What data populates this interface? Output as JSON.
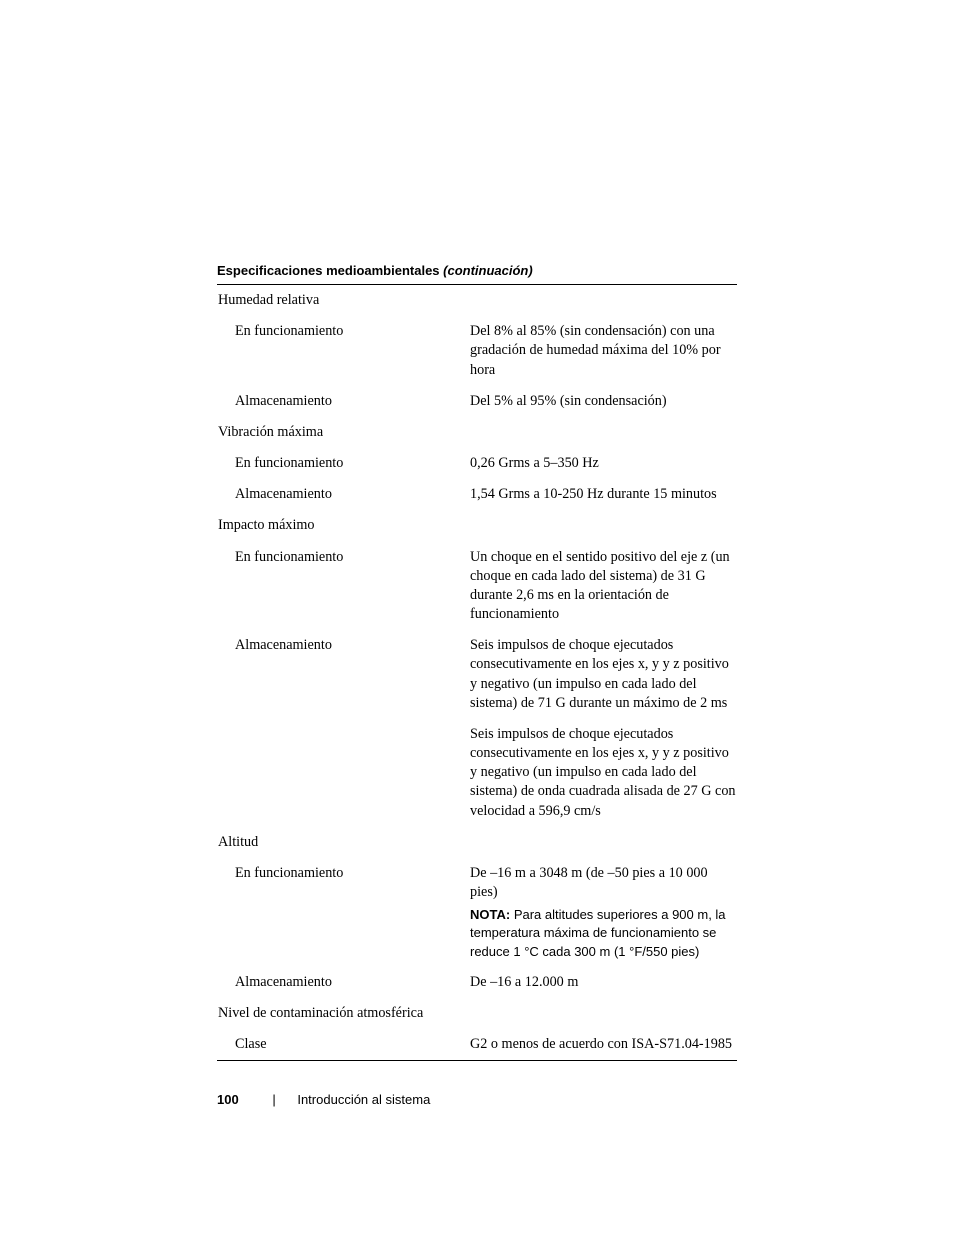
{
  "header": {
    "title_bold": "Especificaciones medioambientales ",
    "title_italic": "(continuación)"
  },
  "rows": [
    {
      "type": "category",
      "label": "Humedad relativa"
    },
    {
      "type": "sub",
      "label": "En funcionamiento",
      "value": "Del 8% al 85% (sin condensación) con una gradación de humedad máxima del 10% por hora"
    },
    {
      "type": "sub",
      "label": "Almacenamiento",
      "value": "Del 5% al 95% (sin condensación)"
    },
    {
      "type": "category",
      "class": "extra-gap",
      "label": "Vibración máxima"
    },
    {
      "type": "sub",
      "label": "En funcionamiento",
      "value": "0,26 Grms a 5–350 Hz"
    },
    {
      "type": "sub",
      "label": "Almacenamiento",
      "value": "1,54 Grms a 10-250 Hz durante 15 minutos"
    },
    {
      "type": "category",
      "label": "Impacto máximo"
    },
    {
      "type": "sub",
      "label": "En funcionamiento",
      "value": "Un choque en el sentido positivo del eje z (un choque en cada lado del sistema) de 31 G durante 2,6 ms en la orientación de funcionamiento"
    },
    {
      "type": "sub",
      "label": "Almacenamiento",
      "value": "Seis impulsos de choque ejecutados consecutivamente en los ejes x, y y z positivo y negativo (un impulso en cada lado del sistema) de 71 G durante un máximo de 2 ms"
    },
    {
      "type": "sub",
      "label": "",
      "value": "Seis impulsos de choque ejecutados consecutivamente en los ejes x, y y z positivo y negativo (un impulso en cada lado del sistema) de onda cuadrada alisada de 27 G con velocidad a 596,9 cm/s"
    },
    {
      "type": "category",
      "label": "Altitud"
    },
    {
      "type": "sub",
      "label": "En funcionamiento",
      "value": "De –16 m a 3048 m (de –50 pies a 10 000 pies)",
      "note_label": "NOTA: ",
      "note_text": "Para altitudes superiores a 900 m, la temperatura máxima de funcionamiento se reduce 1 °C cada 300 m (1 °F/550 pies)"
    },
    {
      "type": "sub",
      "label": "Almacenamiento",
      "value": "De –16 a 12.000 m"
    },
    {
      "type": "category",
      "label": "Nivel de contaminación atmosférica"
    },
    {
      "type": "sub",
      "label": "Clase",
      "value": "G2 o menos de acuerdo con ISA-S71.04-1985"
    }
  ],
  "footer": {
    "page_number": "100",
    "separator": "|",
    "section": "Introducción al sistema"
  }
}
